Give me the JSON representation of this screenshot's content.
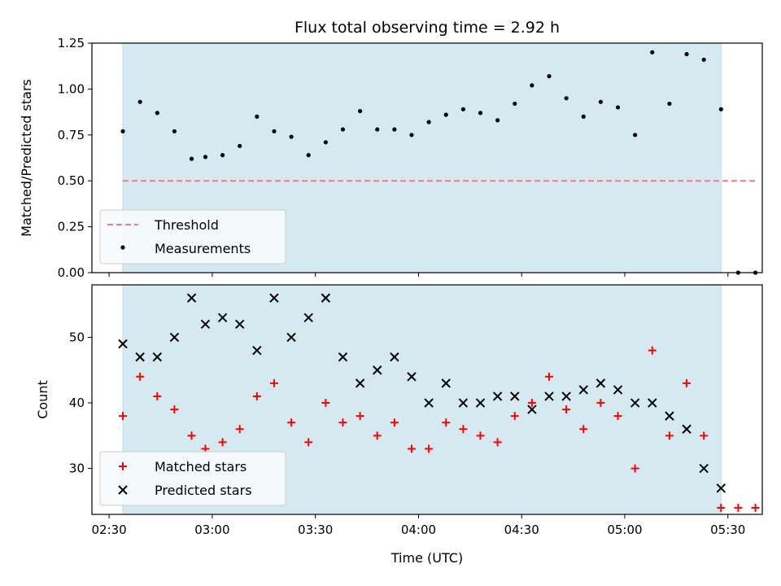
{
  "chart_data": [
    {
      "type": "scatter",
      "title": "Flux total observing time = 2.92 h",
      "xlabel": "",
      "ylabel": "Matched/Predicted stars",
      "xlim": [
        "02:25",
        "05:40"
      ],
      "ylim": [
        0,
        1.25
      ],
      "yticks": [
        "0.00",
        "0.25",
        "0.50",
        "0.75",
        "1.00",
        "1.25"
      ],
      "xticks": [
        "02:30",
        "03:00",
        "03:30",
        "04:00",
        "04:30",
        "05:00",
        "05:30"
      ],
      "shaded_span": [
        "02:34",
        "05:28"
      ],
      "threshold": {
        "name": "Threshold",
        "value": 0.5,
        "x": [
          "02:34",
          "05:38"
        ],
        "color": "#ff7777"
      },
      "series": [
        {
          "name": "Measurements",
          "color": "#000000",
          "x": [
            "02:34",
            "02:39",
            "02:44",
            "02:49",
            "02:54",
            "02:58",
            "03:03",
            "03:08",
            "03:13",
            "03:18",
            "03:23",
            "03:28",
            "03:33",
            "03:38",
            "03:43",
            "03:48",
            "03:53",
            "03:58",
            "04:03",
            "04:08",
            "04:13",
            "04:18",
            "04:23",
            "04:28",
            "04:33",
            "04:38",
            "04:43",
            "04:48",
            "04:53",
            "04:58",
            "05:03",
            "05:08",
            "05:13",
            "05:18",
            "05:23",
            "05:28",
            "05:33",
            "05:38"
          ],
          "y": [
            0.77,
            0.93,
            0.87,
            0.77,
            0.62,
            0.63,
            0.64,
            0.69,
            0.85,
            0.77,
            0.74,
            0.64,
            0.71,
            0.78,
            0.88,
            0.78,
            0.78,
            0.75,
            0.82,
            0.86,
            0.89,
            0.87,
            0.83,
            0.92,
            1.02,
            1.07,
            0.95,
            0.85,
            0.93,
            0.9,
            0.75,
            1.2,
            0.92,
            1.19,
            1.16,
            0.89,
            0.0,
            0.0
          ]
        }
      ]
    },
    {
      "type": "scatter",
      "xlabel": "Time (UTC)",
      "ylabel": "Count",
      "xlim": [
        "02:25",
        "05:40"
      ],
      "ylim": [
        23,
        58
      ],
      "yticks": [
        "30",
        "40",
        "50"
      ],
      "xticks": [
        "02:30",
        "03:00",
        "03:30",
        "04:00",
        "04:30",
        "05:00",
        "05:30"
      ],
      "shaded_span": [
        "02:34",
        "05:28"
      ],
      "series": [
        {
          "name": "Matched stars",
          "color": "#ff0000",
          "marker": "+",
          "x": [
            "02:34",
            "02:39",
            "02:44",
            "02:49",
            "02:54",
            "02:58",
            "03:03",
            "03:08",
            "03:13",
            "03:18",
            "03:23",
            "03:28",
            "03:33",
            "03:38",
            "03:43",
            "03:48",
            "03:53",
            "03:58",
            "04:03",
            "04:08",
            "04:13",
            "04:18",
            "04:23",
            "04:28",
            "04:33",
            "04:38",
            "04:43",
            "04:48",
            "04:53",
            "04:58",
            "05:03",
            "05:08",
            "05:13",
            "05:18",
            "05:23",
            "05:28",
            "05:33",
            "05:38"
          ],
          "y": [
            38,
            44,
            41,
            39,
            35,
            33,
            34,
            36,
            41,
            43,
            37,
            34,
            40,
            37,
            38,
            35,
            37,
            33,
            33,
            37,
            36,
            35,
            34,
            38,
            40,
            44,
            39,
            36,
            40,
            38,
            30,
            48,
            35,
            43,
            35,
            24,
            24,
            24
          ]
        },
        {
          "name": "Predicted stars",
          "color": "#000000",
          "marker": "x",
          "x": [
            "02:34",
            "02:39",
            "02:44",
            "02:49",
            "02:54",
            "02:58",
            "03:03",
            "03:08",
            "03:13",
            "03:18",
            "03:23",
            "03:28",
            "03:33",
            "03:38",
            "03:43",
            "03:48",
            "03:53",
            "03:58",
            "04:03",
            "04:08",
            "04:13",
            "04:18",
            "04:23",
            "04:28",
            "04:33",
            "04:38",
            "04:43",
            "04:48",
            "04:53",
            "04:58",
            "05:03",
            "05:08",
            "05:13",
            "05:18",
            "05:23",
            "05:28"
          ],
          "y": [
            49,
            47,
            47,
            50,
            56,
            52,
            53,
            52,
            48,
            56,
            50,
            53,
            56,
            47,
            43,
            45,
            47,
            44,
            40,
            43,
            40,
            40,
            41,
            41,
            39,
            41,
            41,
            42,
            43,
            42,
            40,
            40,
            38,
            36,
            30,
            27
          ]
        }
      ]
    }
  ]
}
